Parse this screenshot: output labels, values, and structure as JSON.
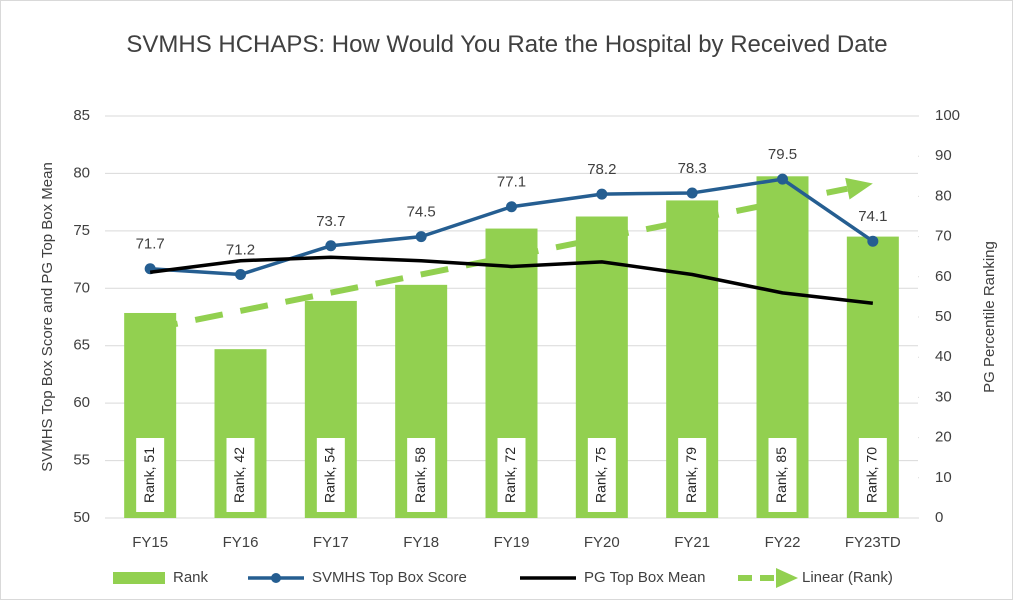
{
  "chart_data": {
    "type": "combo",
    "title": "SVMHS HCHAPS: How Would You Rate the Hospital by Received Date",
    "y_label": "SVMHS Top Box Score and PG Top Box Mean",
    "y2_label": "PG Percentile Ranking",
    "categories": [
      "FY15",
      "FY16",
      "FY17",
      "FY18",
      "FY19",
      "FY20",
      "FY21",
      "FY22",
      "FY23TD"
    ],
    "ylim": [
      50,
      85
    ],
    "yticks": [
      50,
      55,
      60,
      65,
      70,
      75,
      80,
      85
    ],
    "y2lim": [
      0,
      100
    ],
    "y2ticks": [
      0,
      10,
      20,
      30,
      40,
      50,
      60,
      70,
      80,
      90,
      100
    ],
    "grid": true,
    "legend": "bottom",
    "series": [
      {
        "name": "Rank",
        "type": "bar",
        "axis": "y2",
        "color": "#92d050",
        "values": [
          51,
          42,
          54,
          58,
          72,
          75,
          79,
          85,
          70
        ],
        "value_labels": [
          "Rank, 51",
          "Rank, 42",
          "Rank, 54",
          "Rank, 58",
          "Rank, 72",
          "Rank, 75",
          "Rank, 79",
          "Rank, 85",
          "Rank, 70"
        ]
      },
      {
        "name": "SVMHS Top Box Score",
        "type": "line",
        "axis": "y",
        "color": "#255e91",
        "markers": true,
        "values": [
          71.7,
          71.2,
          73.7,
          74.5,
          77.1,
          78.2,
          78.3,
          79.5,
          74.1
        ]
      },
      {
        "name": "PG Top Box Mean",
        "type": "line",
        "axis": "y",
        "color": "#000000",
        "markers": false,
        "values": [
          71.4,
          72.4,
          72.7,
          72.4,
          71.9,
          72.3,
          71.2,
          69.6,
          68.7
        ]
      },
      {
        "name": "Linear (Rank)",
        "type": "trend",
        "axis": "y2",
        "color": "#92d050",
        "values": [
          47.0,
          null,
          null,
          null,
          null,
          null,
          null,
          null,
          83.2
        ]
      }
    ]
  }
}
